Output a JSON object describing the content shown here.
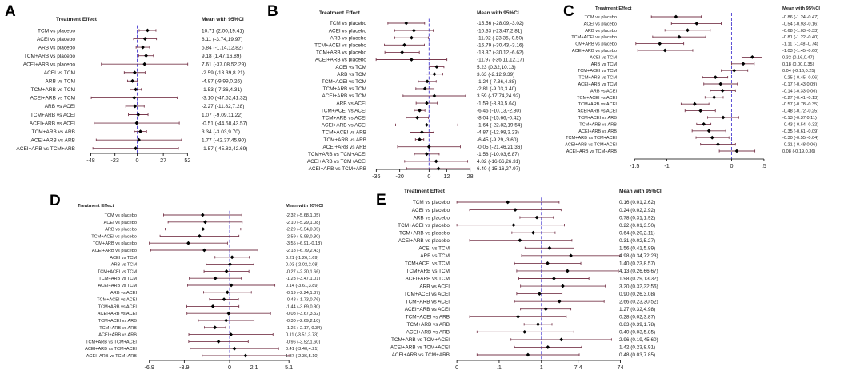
{
  "colors": {
    "ci_line": "#7a3a4e",
    "point": "#000000",
    "null_line": "#5b4fd6",
    "axis": "#000000",
    "text": "#222222"
  },
  "chart_data": [
    {
      "panel": "A",
      "type": "forest",
      "header_left": "Treatment Effect",
      "header_right": "Mean with 95%CI",
      "xlim": [
        -60,
        60
      ],
      "null_value": 0,
      "ticks": [
        -48,
        -23,
        0,
        27,
        52
      ],
      "tick_labels": [
        "-48",
        "-23",
        "0",
        "27",
        "52"
      ],
      "rows": [
        {
          "label": "TCM vs placebo",
          "mean": 10.71,
          "lo": 2.0,
          "hi": 19.41,
          "text": "10.71 (2.00,19.41)"
        },
        {
          "label": "ACEI vs placebo",
          "mean": 8.11,
          "lo": -3.74,
          "hi": 19.97,
          "text": "8.11 (-3.74,19.97)"
        },
        {
          "label": "ARB vs placebo",
          "mean": 5.84,
          "lo": -1.14,
          "hi": 12.82,
          "text": "5.84 (-1.14,12.82)"
        },
        {
          "label": "TCM+ARB vs placebo",
          "mean": 9.18,
          "lo": 1.47,
          "hi": 16.89,
          "text": "9.18 (1.47,16.89)"
        },
        {
          "label": "ACEI+ARB vs placebo",
          "mean": 7.61,
          "lo": -37.08,
          "hi": 52.29,
          "text": "7.61 (-37.08,52.29)"
        },
        {
          "label": "ACEI vs TCM",
          "mean": -2.59,
          "lo": -13.39,
          "hi": 8.21,
          "text": "-2.59 (-13.39,8.21)"
        },
        {
          "label": "ARB vs TCM",
          "mean": -4.87,
          "lo": -9.99,
          "hi": 0.26,
          "text": "-4.87 (-9.99,0.26)"
        },
        {
          "label": "TCM+ARB vs TCM",
          "mean": -1.53,
          "lo": -7.36,
          "hi": 4.31,
          "text": "-1.53 (-7.36,4.31)"
        },
        {
          "label": "ACEI+ARB vs TCM",
          "mean": -3.1,
          "lo": -47.52,
          "hi": 41.32,
          "text": "-3.10 (-47.52,41.32)"
        },
        {
          "label": "ARB vs ACEI",
          "mean": -2.27,
          "lo": -11.82,
          "hi": 7.28,
          "text": "-2.27 (-11.82,7.28)"
        },
        {
          "label": "TCM+ARB vs ACEI",
          "mean": 1.07,
          "lo": -9.09,
          "hi": 11.22,
          "text": "1.07 (-9.09,11.22)"
        },
        {
          "label": "ACEI+ARB vs ACEI",
          "mean": -0.51,
          "lo": -44.58,
          "hi": 43.57,
          "text": "-0.51 (-44.58,43.57)"
        },
        {
          "label": "TCM+ARB vs ARB",
          "mean": 3.34,
          "lo": -3.03,
          "hi": 9.7,
          "text": "3.34 (-3.03,9.70)"
        },
        {
          "label": "ACEI+ARB vs ARB",
          "mean": 1.77,
          "lo": -42.37,
          "hi": 45.9,
          "text": "1.77 (-42.37,45.90)"
        },
        {
          "label": "ACEI+ARB vs TCM+ARB",
          "mean": -1.57,
          "lo": -45.83,
          "hi": 42.69,
          "text": "-1.57 (-45.83,42.69)"
        }
      ]
    },
    {
      "panel": "B",
      "type": "forest",
      "header_left": "Treatment Effect",
      "header_right": "Mean with 95%CI",
      "xlim": [
        -40,
        32
      ],
      "null_value": 0,
      "ticks": [
        -36,
        -20,
        0,
        12,
        28
      ],
      "tick_labels": [
        "-36",
        "-20",
        "0",
        "12",
        "28"
      ],
      "rows": [
        {
          "label": "TCM vs placebo",
          "mean": -15.56,
          "lo": -28.09,
          "hi": -3.02,
          "text": "-15.56 (-28.09,-3.02)"
        },
        {
          "label": "ACEI vs placebo",
          "mean": -10.33,
          "lo": -23.47,
          "hi": 2.81,
          "text": "-10.33 (-23.47,2.81)"
        },
        {
          "label": "ARB vs placebo",
          "mean": -11.92,
          "lo": -23.35,
          "hi": -0.5,
          "text": "-11.92 (-23.35,-0.50)"
        },
        {
          "label": "TCM+ACEI vs placebo",
          "mean": -16.79,
          "lo": -30.43,
          "hi": -3.16,
          "text": "-16.79 (-30.43,-3.16)"
        },
        {
          "label": "TCM+ARB vs placebo",
          "mean": -18.37,
          "lo": -30.12,
          "hi": -6.62,
          "text": "-18.37 (-30.12,-6.62)"
        },
        {
          "label": "ACEI+ARB vs placebo",
          "mean": -11.97,
          "lo": -36.11,
          "hi": 12.17,
          "text": "-11.97 (-36.11,12.17)"
        },
        {
          "label": "ACEI vs TCM",
          "mean": 5.23,
          "lo": 0.32,
          "hi": 10.13,
          "text": "5.23 (0.32,10.13)"
        },
        {
          "label": "ARB vs TCM",
          "mean": 3.63,
          "lo": -2.12,
          "hi": 9.39,
          "text": "3.63 (-2.12,9.39)"
        },
        {
          "label": "TCM+ACEI vs TCM",
          "mean": -1.24,
          "lo": -7.36,
          "hi": 4.88,
          "text": "-1.24 (-7.36,4.88)"
        },
        {
          "label": "TCM+ARB vs TCM",
          "mean": -2.81,
          "lo": -9.03,
          "hi": 3.4,
          "text": "-2.81 (-9.03,3.40)"
        },
        {
          "label": "ACEI+ARB vs TCM",
          "mean": 3.59,
          "lo": -17.74,
          "hi": 24.92,
          "text": "3.59 (-17.74,24.92)"
        },
        {
          "label": "ARB vs ACEI",
          "mean": -1.59,
          "lo": -8.83,
          "hi": 5.64,
          "text": "-1.59 (-8.83,5.64)"
        },
        {
          "label": "TCM+ACEI vs ACEI",
          "mean": -6.46,
          "lo": -10.13,
          "hi": -2.8,
          "text": "-6.46 (-10.13,-2.80)"
        },
        {
          "label": "TCM+ARB vs ACEI",
          "mean": -8.04,
          "lo": -15.66,
          "hi": -0.42,
          "text": "-8.04 (-15.66,-0.42)"
        },
        {
          "label": "ACEI+ARB vs ACEI",
          "mean": -1.64,
          "lo": -22.82,
          "hi": 19.54,
          "text": "-1.64 (-22.82,19.54)"
        },
        {
          "label": "TCM+ACEI vs ARB",
          "mean": -4.87,
          "lo": -12.98,
          "hi": 3.23,
          "text": "-4.87 (-12.98,3.23)"
        },
        {
          "label": "TCM+ARB vs ARB",
          "mean": -6.45,
          "lo": -9.29,
          "hi": -3.6,
          "text": "-6.45 (-9.29,-3.60)"
        },
        {
          "label": "ACEI+ARB vs ARB",
          "mean": -0.05,
          "lo": -21.46,
          "hi": 21.36,
          "text": "-0.05 (-21.46,21.36)"
        },
        {
          "label": "TCM+ARB vs TCM+ACEI",
          "mean": -1.58,
          "lo": -10.03,
          "hi": 6.87,
          "text": "-1.58 (-10.03,6.87)"
        },
        {
          "label": "ACEI+ARB vs TCM+ACEI",
          "mean": 4.82,
          "lo": -16.66,
          "hi": 26.31,
          "text": "4.82 (-16.66,26.31)"
        },
        {
          "label": "ACEI+ARB vs TCM+ARB",
          "mean": 6.4,
          "lo": -15.16,
          "hi": 27.97,
          "text": "6.40 (-15.16,27.97)"
        }
      ]
    },
    {
      "panel": "C",
      "type": "forest",
      "header_left": "Treatment Effect",
      "header_right": "Mean with 95%CI",
      "xlim": [
        -1.7,
        0.6
      ],
      "null_value": 0,
      "ticks": [
        -1.5,
        -1,
        0,
        0.5
      ],
      "tick_labels": [
        "-1.5",
        "-1",
        "0",
        ".5"
      ],
      "rows": [
        {
          "label": "TCM vs placebo",
          "mean": -0.86,
          "lo": -1.24,
          "hi": -0.47,
          "text": "-0.86 (-1.24,-0.47)"
        },
        {
          "label": "ACEI vs placebo",
          "mean": -0.54,
          "lo": -0.93,
          "hi": -0.16,
          "text": "-0.54 (-0.93,-0.16)"
        },
        {
          "label": "ARB vs placebo",
          "mean": -0.68,
          "lo": -1.03,
          "hi": -0.33,
          "text": "-0.68 (-1.03,-0.33)"
        },
        {
          "label": "TCM+ACEI vs placebo",
          "mean": -0.81,
          "lo": -1.22,
          "hi": -0.4,
          "text": "-0.81 (-1.22,-0.40)"
        },
        {
          "label": "TCM+ARB vs placebo",
          "mean": -1.11,
          "lo": -1.48,
          "hi": -0.74,
          "text": "-1.11 (-1.48,-0.74)"
        },
        {
          "label": "ACEI+ARB vs placebo",
          "mean": -1.03,
          "lo": -1.45,
          "hi": -0.6,
          "text": "-1.03 (-1.45,-0.60)"
        },
        {
          "label": "ACEI vs TCM",
          "mean": 0.32,
          "lo": 0.16,
          "hi": 0.47,
          "text": "0.32 (0.16,0.47)"
        },
        {
          "label": "ARB vs TCM",
          "mean": 0.18,
          "lo": 0.0,
          "hi": 0.35,
          "text": "0.18 (0.00,0.35)"
        },
        {
          "label": "TCM+ACEI vs TCM",
          "mean": 0.04,
          "lo": -0.16,
          "hi": 0.25,
          "text": "0.04 (-0.16,0.25)"
        },
        {
          "label": "TCM+ARB vs TCM",
          "mean": -0.25,
          "lo": -0.45,
          "hi": -0.06,
          "text": "-0.25 (-0.45,-0.06)"
        },
        {
          "label": "ACEI+ARB vs TCM",
          "mean": -0.17,
          "lo": -0.43,
          "hi": 0.09,
          "text": "-0.17 (-0.43,0.09)"
        },
        {
          "label": "ARB vs ACEI",
          "mean": -0.14,
          "lo": -0.33,
          "hi": 0.06,
          "text": "-0.14 (-0.33,0.06)"
        },
        {
          "label": "TCM+ACEI vs ACEI",
          "mean": -0.27,
          "lo": -0.41,
          "hi": -0.13,
          "text": "-0.27 (-0.41,-0.13)"
        },
        {
          "label": "TCM+ARB vs ACEI",
          "mean": -0.57,
          "lo": -0.78,
          "hi": -0.35,
          "text": "-0.57 (-0.78,-0.35)"
        },
        {
          "label": "ACEI+ARB vs ACEI",
          "mean": -0.48,
          "lo": -0.72,
          "hi": -0.25,
          "text": "-0.48 (-0.72,-0.25)"
        },
        {
          "label": "TCM+ACEI vs ARB",
          "mean": -0.13,
          "lo": -0.37,
          "hi": 0.11,
          "text": "-0.13 (-0.37,0.11)"
        },
        {
          "label": "TCM+ARB vs ARB",
          "mean": -0.43,
          "lo": -0.54,
          "hi": -0.32,
          "text": "-0.43 (-0.54,-0.32)"
        },
        {
          "label": "ACEI+ARB vs ARB",
          "mean": -0.35,
          "lo": -0.61,
          "hi": -0.09,
          "text": "-0.35 (-0.61,-0.09)"
        },
        {
          "label": "TCM+ARB vs TCM+ACEI",
          "mean": -0.3,
          "lo": -0.55,
          "hi": -0.04,
          "text": "-0.30 (-0.55,-0.04)"
        },
        {
          "label": "ACEI+ARB vs TCM+ACEI",
          "mean": -0.21,
          "lo": -0.48,
          "hi": 0.06,
          "text": "-0.21 (-0.48,0.06)"
        },
        {
          "label": "ACEI+ARB vs TCM+ARB",
          "mean": 0.08,
          "lo": -0.19,
          "hi": 0.36,
          "text": "0.08 (-0.19,0.36)"
        }
      ]
    },
    {
      "panel": "D",
      "type": "forest",
      "header_left": "Treatment Effect",
      "header_right": "Mean with 95%CI",
      "xlim": [
        -7.5,
        5.5
      ],
      "null_value": 0,
      "ticks": [
        -6.9,
        -3.9,
        0,
        2.1,
        5.1
      ],
      "tick_labels": [
        "-6.9",
        "-3.9",
        "0",
        "2.1",
        "5.1"
      ],
      "rows": [
        {
          "label": "TCM vs placebo",
          "mean": -2.32,
          "lo": -5.68,
          "hi": 1.05,
          "text": "-2.32 (-5.68,1.05)"
        },
        {
          "label": "ACEI vs placebo",
          "mean": -2.1,
          "lo": -5.29,
          "hi": 1.08,
          "text": "-2.10 (-5.29,1.08)"
        },
        {
          "label": "ARB vs placebo",
          "mean": -2.29,
          "lo": -5.54,
          "hi": 0.95,
          "text": "-2.29 (-5.54,0.95)"
        },
        {
          "label": "TCM+ACEI vs placebo",
          "mean": -2.59,
          "lo": -5.98,
          "hi": 0.8,
          "text": "-2.59 (-5.98,0.80)"
        },
        {
          "label": "TCM+ARB vs placebo",
          "mean": -3.55,
          "lo": -6.91,
          "hi": -0.18,
          "text": "-3.55 (-6.91,-0.18)"
        },
        {
          "label": "ACEI+ARB vs placebo",
          "mean": -2.18,
          "lo": -6.79,
          "hi": 2.43,
          "text": "-2.18 (-6.79,2.43)"
        },
        {
          "label": "ACEI vs TCM",
          "mean": 0.21,
          "lo": -1.26,
          "hi": 1.69,
          "text": "0.21 (-1.26,1.69)"
        },
        {
          "label": "ARB vs TCM",
          "mean": 0.03,
          "lo": -2.02,
          "hi": 2.08,
          "text": "0.03 (-2.02,2.08)"
        },
        {
          "label": "TCM+ACEI vs TCM",
          "mean": -0.27,
          "lo": -2.2,
          "hi": 1.66,
          "text": "-0.27 (-2.20,1.66)"
        },
        {
          "label": "TCM+ARB vs TCM",
          "mean": -1.23,
          "lo": -3.47,
          "hi": 1.01,
          "text": "-1.23 (-3.47,1.01)"
        },
        {
          "label": "ACEI+ARB vs TCM",
          "mean": 0.14,
          "lo": -3.61,
          "hi": 3.89,
          "text": "0.14 (-3.61,3.89)"
        },
        {
          "label": "ARB vs ACEI",
          "mean": -0.19,
          "lo": -2.24,
          "hi": 1.87,
          "text": "-0.19 (-2.24,1.87)"
        },
        {
          "label": "TCM+ACEI vs ACEI",
          "mean": -0.48,
          "lo": -1.73,
          "hi": 0.76,
          "text": "-0.48 (-1.73,0.76)"
        },
        {
          "label": "TCM+ARB vs ACEI",
          "mean": -1.44,
          "lo": -3.69,
          "hi": 0.8,
          "text": "-1.44 (-3.69,0.80)"
        },
        {
          "label": "ACEI+ARB vs ACEI",
          "mean": -0.08,
          "lo": -3.67,
          "hi": 3.52,
          "text": "-0.08 (-3.67,3.52)"
        },
        {
          "label": "TCM+ACEI vs ARB",
          "mean": -0.3,
          "lo": -2.69,
          "hi": 2.1,
          "text": "-0.30 (-2.69,2.10)"
        },
        {
          "label": "TCM+ARB vs ARB",
          "mean": -1.26,
          "lo": -2.17,
          "hi": -0.34,
          "text": "-1.26 (-2.17,-0.34)"
        },
        {
          "label": "ACEI+ARB vs ARB",
          "mean": 0.11,
          "lo": -3.51,
          "hi": 3.73,
          "text": "0.11 (-3.51,3.73)"
        },
        {
          "label": "TCM+ARB vs TCM+ACEI",
          "mean": -0.96,
          "lo": -3.52,
          "hi": 1.6,
          "text": "-0.96 (-3.52,1.60)"
        },
        {
          "label": "ACEI+ARB vs TCM+ACEI",
          "mean": 0.41,
          "lo": -3.4,
          "hi": 4.21,
          "text": "0.41 (-3.40,4.21)"
        },
        {
          "label": "ACEI+ARB vs TCM+ARB",
          "mean": 1.37,
          "lo": -2.36,
          "hi": 5.1,
          "text": "1.37 (-2.36,5.10)"
        }
      ]
    },
    {
      "panel": "E",
      "type": "forest",
      "scale": "log",
      "header_left": "Treatment Effect",
      "header_right": "Mean with 95%CI",
      "xlim": [
        0.008,
        90
      ],
      "null_value": 1,
      "ticks": [
        0.01,
        0.1,
        1,
        7.4,
        74
      ],
      "tick_labels": [
        "0",
        ".1",
        "1",
        "7.4",
        "74"
      ],
      "rows": [
        {
          "label": "TCM vs placebo",
          "mean": 0.16,
          "lo": 0.01,
          "hi": 2.62,
          "text": "0.16 (0.01,2.62)"
        },
        {
          "label": "ACEI vs placebo",
          "mean": 0.24,
          "lo": 0.02,
          "hi": 2.92,
          "text": "0.24 (0.02,2.92)"
        },
        {
          "label": "ARB vs placebo",
          "mean": 0.78,
          "lo": 0.31,
          "hi": 1.92,
          "text": "0.78 (0.31,1.92)"
        },
        {
          "label": "TCM+ACEI vs placebo",
          "mean": 0.22,
          "lo": 0.01,
          "hi": 3.5,
          "text": "0.22 (0.01,3.50)"
        },
        {
          "label": "TCM+ARB vs placebo",
          "mean": 0.64,
          "lo": 0.2,
          "hi": 2.11,
          "text": "0.64 (0.20,2.11)"
        },
        {
          "label": "ACEI+ARB vs placebo",
          "mean": 0.31,
          "lo": 0.02,
          "hi": 5.27,
          "text": "0.31 (0.02,5.27)"
        },
        {
          "label": "ACEI vs TCM",
          "mean": 1.56,
          "lo": 0.41,
          "hi": 5.89,
          "text": "1.56 (0.41,5.89)"
        },
        {
          "label": "ARB vs TCM",
          "mean": 4.98,
          "lo": 0.34,
          "hi": 72.23,
          "text": "4.98 (0.34,72.23)"
        },
        {
          "label": "TCM+ACEI vs TCM",
          "mean": 1.4,
          "lo": 0.23,
          "hi": 8.57,
          "text": "1.40 (0.23,8.57)"
        },
        {
          "label": "TCM+ARB vs TCM",
          "mean": 4.13,
          "lo": 0.26,
          "hi": 66.67,
          "text": "4.13 (0.26,66.67)"
        },
        {
          "label": "ACEI+ARB vs TCM",
          "mean": 1.98,
          "lo": 0.29,
          "hi": 13.32,
          "text": "1.98 (0.29,13.32)"
        },
        {
          "label": "ARB vs ACEI",
          "mean": 3.2,
          "lo": 0.32,
          "hi": 32.56,
          "text": "3.20 (0.32,32.56)"
        },
        {
          "label": "TCM+ACEI vs ACEI",
          "mean": 0.9,
          "lo": 0.26,
          "hi": 3.08,
          "text": "0.90 (0.26,3.08)"
        },
        {
          "label": "TCM+ARB vs ACEI",
          "mean": 2.66,
          "lo": 0.23,
          "hi": 30.52,
          "text": "2.66 (0.23,30.52)"
        },
        {
          "label": "ACEI+ARB vs ACEI",
          "mean": 1.27,
          "lo": 0.32,
          "hi": 4.98,
          "text": "1.27 (0.32,4.98)"
        },
        {
          "label": "TCM+ACEI vs ARB",
          "mean": 0.28,
          "lo": 0.02,
          "hi": 3.87,
          "text": "0.28 (0.02,3.87)"
        },
        {
          "label": "TCM+ARB vs ARB",
          "mean": 0.83,
          "lo": 0.39,
          "hi": 1.78,
          "text": "0.83 (0.39,1.78)"
        },
        {
          "label": "ACEI+ARB vs ARB",
          "mean": 0.4,
          "lo": 0.03,
          "hi": 5.85,
          "text": "0.40 (0.03,5.85)"
        },
        {
          "label": "TCM+ARB vs TCM+ACEI",
          "mean": 2.96,
          "lo": 0.19,
          "hi": 45.6,
          "text": "2.96 (0.19,45.60)"
        },
        {
          "label": "ACEI+ARB vs TCM+ACEI",
          "mean": 1.42,
          "lo": 0.23,
          "hi": 8.91,
          "text": "1.42 (0.23,8.91)"
        },
        {
          "label": "ACEI+ARB vs TCM+ARB",
          "mean": 0.48,
          "lo": 0.03,
          "hi": 7.85,
          "text": "0.48 (0.03,7.85)"
        }
      ]
    }
  ]
}
